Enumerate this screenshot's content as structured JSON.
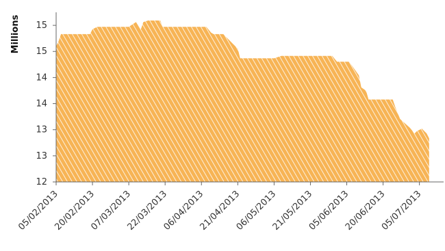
{
  "chart_data": {
    "type": "area",
    "title": "",
    "xlabel": "",
    "ylabel": "Millions",
    "y_tick_labels": [
      "12",
      "13",
      "13",
      "14",
      "14",
      "15",
      "15"
    ],
    "ylim": [
      12,
      15.5
    ],
    "x_tick_labels": [
      "05/02/2013",
      "20/02/2013",
      "07/03/2013",
      "22/03/2013",
      "06/04/2013",
      "21/04/2013",
      "06/05/2013",
      "21/05/2013",
      "05/06/2013",
      "20/06/2013",
      "05/07/2013"
    ],
    "x_range": [
      "2013-02-05",
      "2013-07-15"
    ],
    "grid": false,
    "fill_color": "#f7b455",
    "hatch_color": "#ffffff",
    "axis_color": "#666666",
    "series": [
      {
        "x": [
          "2013-02-05",
          "2013-02-06",
          "2013-02-07",
          "2013-02-19",
          "2013-02-20",
          "2013-02-22",
          "2013-03-01",
          "2013-03-07",
          "2013-03-10",
          "2013-03-12",
          "2013-03-13",
          "2013-03-15",
          "2013-03-20",
          "2013-03-21",
          "2013-03-22",
          "2013-03-26",
          "2013-04-06",
          "2013-04-08",
          "2013-04-10",
          "2013-04-11",
          "2013-04-15",
          "2013-04-17",
          "2013-04-19",
          "2013-04-21",
          "2013-04-22",
          "2013-05-06",
          "2013-05-09",
          "2013-05-11",
          "2013-05-21",
          "2013-05-30",
          "2013-06-01",
          "2013-06-05",
          "2013-06-06",
          "2013-06-10",
          "2013-06-11",
          "2013-06-13",
          "2013-06-14",
          "2013-06-20",
          "2013-06-24",
          "2013-06-25",
          "2013-06-27",
          "2013-07-01",
          "2013-07-03",
          "2013-07-04",
          "2013-07-06",
          "2013-07-08",
          "2013-07-09"
        ],
        "values": [
          14.8,
          14.9,
          15.05,
          15.05,
          15.15,
          15.2,
          15.2,
          15.2,
          15.3,
          15.15,
          15.3,
          15.33,
          15.33,
          15.2,
          15.2,
          15.2,
          15.2,
          15.2,
          15.08,
          15.05,
          15.05,
          14.95,
          14.85,
          14.75,
          14.55,
          14.55,
          14.6,
          14.6,
          14.6,
          14.6,
          14.48,
          14.48,
          14.48,
          14.2,
          13.95,
          13.88,
          13.7,
          13.7,
          13.7,
          13.55,
          13.3,
          13.12,
          13.0,
          13.05,
          13.1,
          13.0,
          12.9
        ]
      }
    ]
  }
}
